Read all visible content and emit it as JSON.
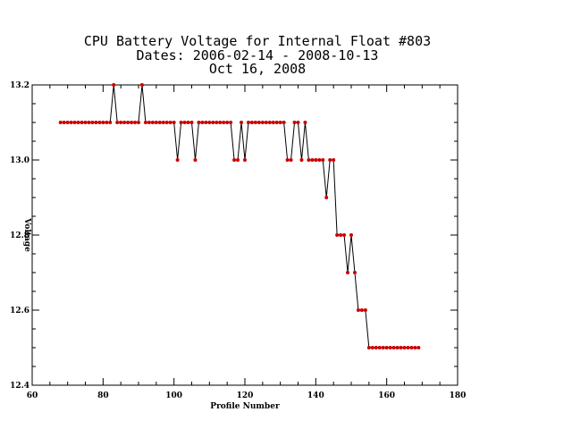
{
  "chart_data": {
    "type": "line",
    "title_lines": [
      "CPU Battery Voltage for Internal Float #803",
      "Dates:  2006-02-14 -  2008-10-13",
      "Oct 16, 2008"
    ],
    "xlabel": "Profile Number",
    "ylabel": "Voltage",
    "xlim": [
      60,
      180
    ],
    "ylim": [
      12.4,
      13.2
    ],
    "xticks": [
      "60",
      "80",
      "100",
      "120",
      "140",
      "160",
      "180"
    ],
    "yticks": [
      "12.4",
      "12.6",
      "12.8",
      "13.0",
      "13.2"
    ],
    "grid": false,
    "line_color": "#000000",
    "marker_color": "#cc0000",
    "series": [
      {
        "x": [
          68,
          69,
          70,
          71,
          72,
          73,
          74,
          75,
          76,
          77,
          78,
          79,
          80,
          81,
          82,
          83,
          84,
          85,
          86,
          87,
          88,
          89,
          90,
          91,
          92,
          93,
          94,
          95,
          96,
          97,
          98,
          99,
          100,
          101,
          102,
          103,
          104,
          105,
          106,
          107,
          108,
          109,
          110,
          111,
          112,
          113,
          114,
          115,
          116,
          117,
          118,
          119,
          120,
          121,
          122,
          123,
          124,
          125,
          126,
          127,
          128,
          129,
          130,
          131,
          132,
          133,
          134,
          135,
          136,
          137,
          138,
          139,
          140,
          141,
          142,
          143,
          144,
          145,
          146,
          147,
          148,
          149,
          150,
          151,
          152,
          153,
          154,
          155,
          156,
          157,
          158,
          159,
          160,
          161,
          162,
          163,
          164,
          165,
          166,
          167,
          168,
          169
        ],
        "y": [
          13.1,
          13.1,
          13.1,
          13.1,
          13.1,
          13.1,
          13.1,
          13.1,
          13.1,
          13.1,
          13.1,
          13.1,
          13.1,
          13.1,
          13.1,
          13.2,
          13.1,
          13.1,
          13.1,
          13.1,
          13.1,
          13.1,
          13.1,
          13.2,
          13.1,
          13.1,
          13.1,
          13.1,
          13.1,
          13.1,
          13.1,
          13.1,
          13.1,
          13.0,
          13.1,
          13.1,
          13.1,
          13.1,
          13.0,
          13.1,
          13.1,
          13.1,
          13.1,
          13.1,
          13.1,
          13.1,
          13.1,
          13.1,
          13.1,
          13.0,
          13.0,
          13.1,
          13.0,
          13.1,
          13.1,
          13.1,
          13.1,
          13.1,
          13.1,
          13.1,
          13.1,
          13.1,
          13.1,
          13.1,
          13.0,
          13.0,
          13.1,
          13.1,
          13.0,
          13.1,
          13.0,
          13.0,
          13.0,
          13.0,
          13.0,
          12.9,
          13.0,
          13.0,
          12.8,
          12.8,
          12.8,
          12.7,
          12.8,
          12.7,
          12.6,
          12.6,
          12.6,
          12.5,
          12.5,
          12.5,
          12.5,
          12.5,
          12.5,
          12.5,
          12.5,
          12.5,
          12.5,
          12.5,
          12.5,
          12.5,
          12.5,
          12.5
        ]
      }
    ]
  }
}
